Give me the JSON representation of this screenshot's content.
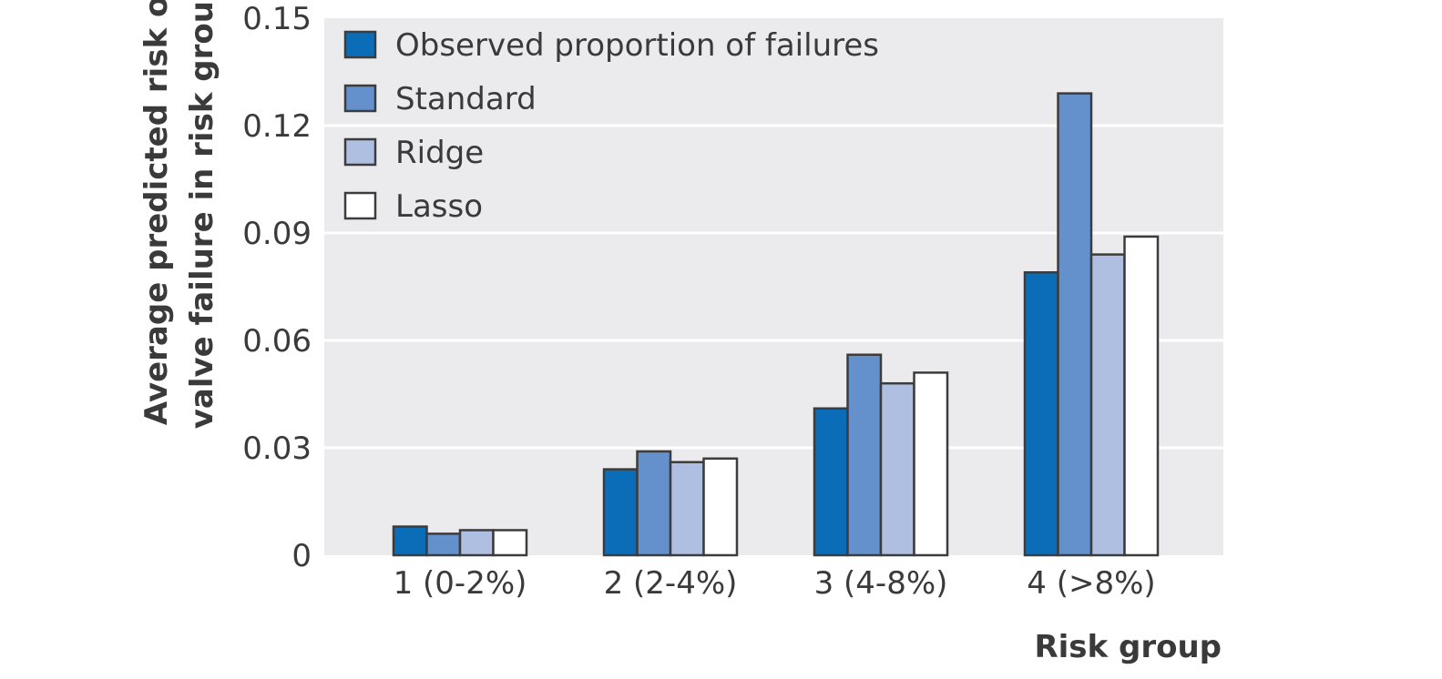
{
  "chart_data": {
    "type": "bar",
    "title": "",
    "xlabel": "Risk group",
    "ylabel": [
      "Average predicted risk of",
      "valve failure in risk group"
    ],
    "categories": [
      "1 (0-2%)",
      "2 (2-4%)",
      "3 (4-8%)",
      "4 (>8%)"
    ],
    "series": [
      {
        "name": "Observed proportion of failures",
        "values": [
          0.008,
          0.024,
          0.041,
          0.079
        ],
        "color": "#0b6db7"
      },
      {
        "name": "Standard",
        "values": [
          0.006,
          0.029,
          0.056,
          0.129
        ],
        "color": "#6490cc"
      },
      {
        "name": "Ridge",
        "values": [
          0.007,
          0.026,
          0.048,
          0.084
        ],
        "color": "#aebfe2"
      },
      {
        "name": "Lasso",
        "values": [
          0.007,
          0.027,
          0.051,
          0.089
        ],
        "color": "#ffffff"
      }
    ],
    "ylim": [
      0,
      0.15
    ],
    "yticks": [
      "0",
      "0.03",
      "0.06",
      "0.09",
      "0.12",
      "0.15"
    ],
    "grid": true,
    "legend_position": "top-left",
    "background_color": "#ebebee",
    "gridline_color": "#ffffff",
    "bar_edge_color": "#3c3c3c"
  }
}
